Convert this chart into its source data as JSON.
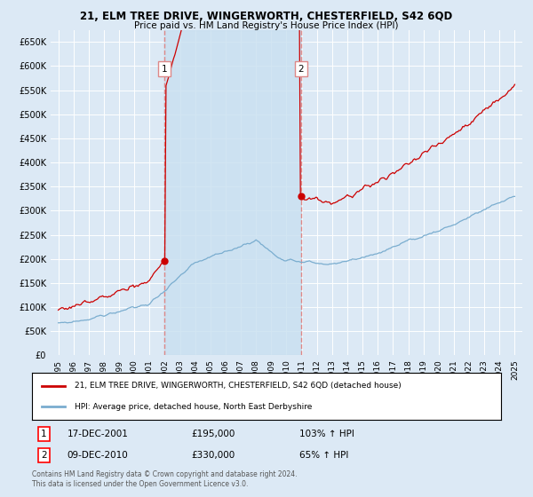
{
  "title": "21, ELM TREE DRIVE, WINGERWORTH, CHESTERFIELD, S42 6QD",
  "subtitle": "Price paid vs. HM Land Registry's House Price Index (HPI)",
  "ylim": [
    0,
    675000
  ],
  "yticks": [
    0,
    50000,
    100000,
    150000,
    200000,
    250000,
    300000,
    350000,
    400000,
    450000,
    500000,
    550000,
    600000,
    650000
  ],
  "background_color": "#dce9f5",
  "sale1_date": 2001.96,
  "sale1_price": 195000,
  "sale2_date": 2010.94,
  "sale2_price": 330000,
  "red_line_color": "#cc0000",
  "blue_line_color": "#7aadcf",
  "vline_color": "#dd8888",
  "shade_color": "#c8dff0",
  "legend_label_red": "21, ELM TREE DRIVE, WINGERWORTH, CHESTERFIELD, S42 6QD (detached house)",
  "legend_label_blue": "HPI: Average price, detached house, North East Derbyshire",
  "footer1": "Contains HM Land Registry data © Crown copyright and database right 2024.",
  "footer2": "This data is licensed under the Open Government Licence v3.0.",
  "note1_date": "17-DEC-2001",
  "note1_price": "£195,000",
  "note1_hpi": "103% ↑ HPI",
  "note2_date": "09-DEC-2010",
  "note2_price": "£330,000",
  "note2_hpi": "65% ↑ HPI",
  "xmin": 1994.5,
  "xmax": 2025.5
}
